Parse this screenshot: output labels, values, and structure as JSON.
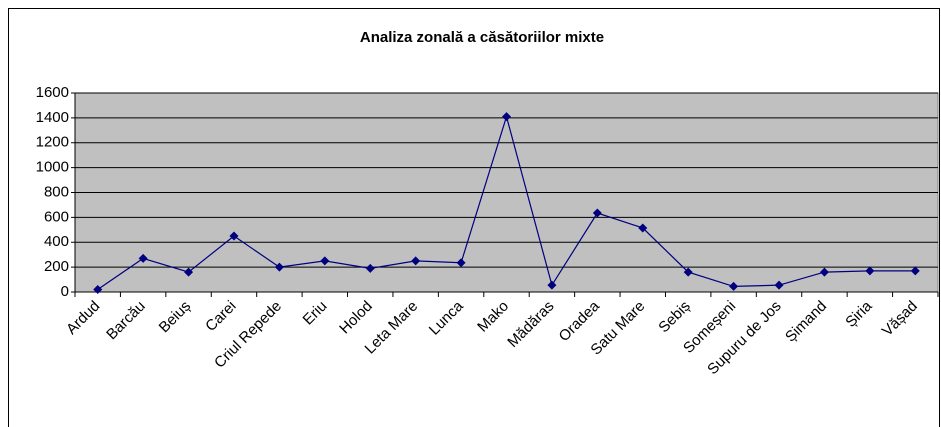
{
  "chart_data": {
    "type": "line",
    "title": "Analiza zonală a căsătoriilor mixte",
    "categories": [
      "Ardud",
      "Barcău",
      "Beiuș",
      "Carei",
      "Criul Repede",
      "Eriu",
      "Holod",
      "Leta Mare",
      "Lunca",
      "Mako",
      "Mădăras",
      "Oradea",
      "Satu Mare",
      "Sebiș",
      "Someșeni",
      "Supuru de Jos",
      "Șimand",
      "Șiria",
      "Vășad"
    ],
    "values": [
      20,
      270,
      160,
      450,
      200,
      250,
      190,
      250,
      235,
      1410,
      55,
      635,
      515,
      160,
      45,
      55,
      160,
      170,
      170
    ],
    "color": "#000080",
    "ylim": [
      0,
      1600
    ],
    "yticks": [
      0,
      200,
      400,
      600,
      800,
      1000,
      1200,
      1400,
      1600
    ],
    "grid": true
  }
}
